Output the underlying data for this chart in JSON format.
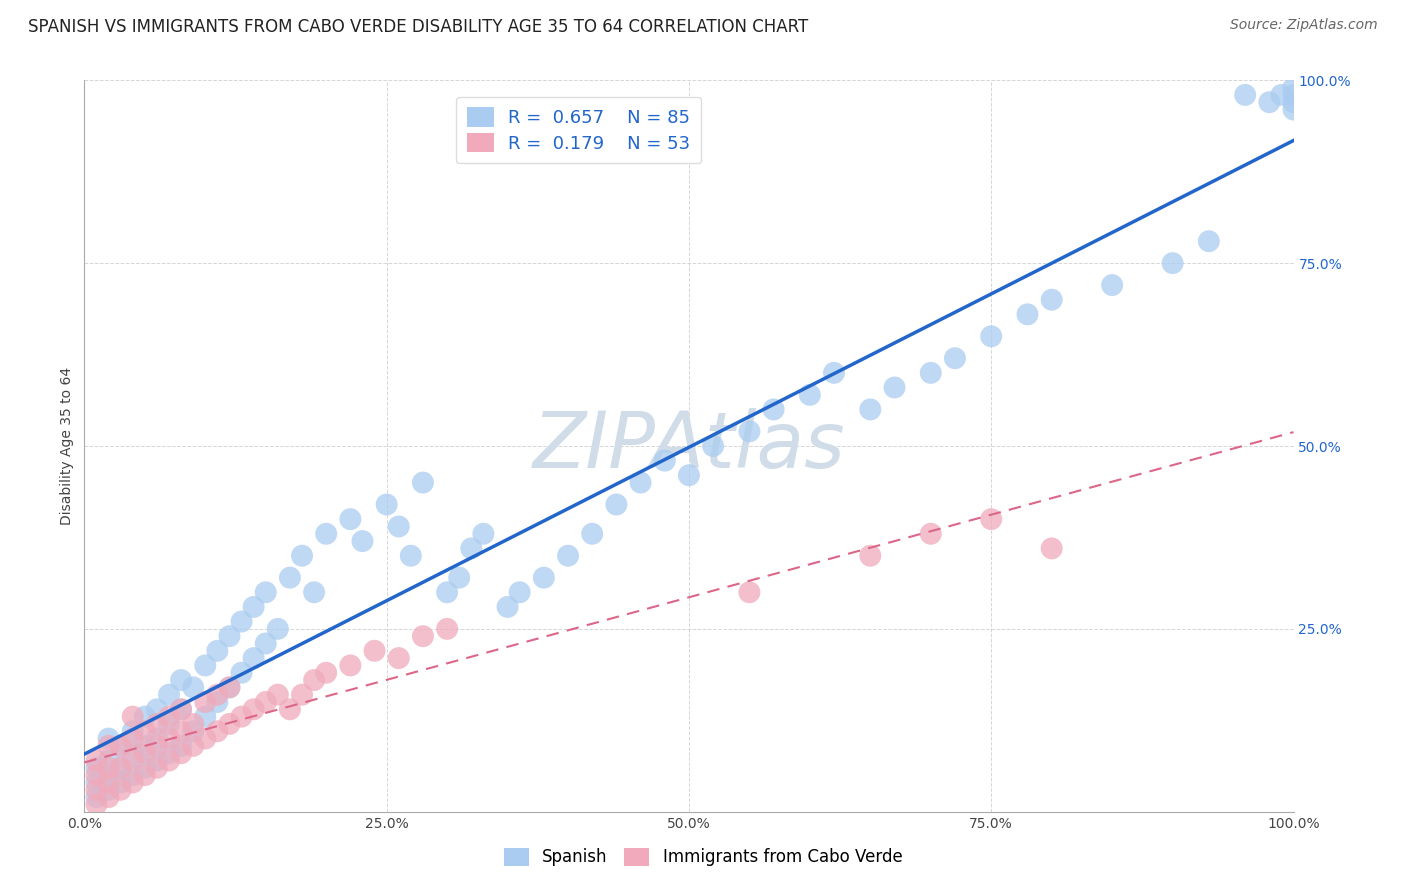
{
  "title": "SPANISH VS IMMIGRANTS FROM CABO VERDE DISABILITY AGE 35 TO 64 CORRELATION CHART",
  "source": "Source: ZipAtlas.com",
  "ylabel": "Disability Age 35 to 64",
  "xlim": [
    0,
    1.0
  ],
  "ylim": [
    0,
    1.0
  ],
  "xticks": [
    0.0,
    0.25,
    0.5,
    0.75,
    1.0
  ],
  "yticks": [
    0.0,
    0.25,
    0.5,
    0.75,
    1.0
  ],
  "xtick_labels": [
    "0.0%",
    "25.0%",
    "50.0%",
    "75.0%",
    "100.0%"
  ],
  "ytick_labels": [
    "",
    "25.0%",
    "50.0%",
    "75.0%",
    "100.0%"
  ],
  "spanish_R": 0.657,
  "spanish_N": 85,
  "caboverde_R": 0.179,
  "caboverde_N": 53,
  "spanish_color": "#aaccf0",
  "caboverde_color": "#f0aabb",
  "spanish_line_color": "#2266cc",
  "caboverde_line_color": "#dd6688",
  "background_color": "#ffffff",
  "grid_color": "#cccccc",
  "watermark_color": "#d0dce8",
  "title_fontsize": 12,
  "axis_label_fontsize": 10,
  "tick_fontsize": 10,
  "source_fontsize": 10,
  "sp_x": [
    0.01,
    0.01,
    0.01,
    0.02,
    0.02,
    0.02,
    0.02,
    0.03,
    0.03,
    0.03,
    0.04,
    0.04,
    0.04,
    0.05,
    0.05,
    0.05,
    0.06,
    0.06,
    0.06,
    0.07,
    0.07,
    0.07,
    0.08,
    0.08,
    0.08,
    0.09,
    0.09,
    0.1,
    0.1,
    0.11,
    0.11,
    0.12,
    0.12,
    0.13,
    0.13,
    0.14,
    0.14,
    0.15,
    0.15,
    0.16,
    0.17,
    0.18,
    0.19,
    0.2,
    0.22,
    0.23,
    0.25,
    0.26,
    0.27,
    0.28,
    0.3,
    0.31,
    0.32,
    0.33,
    0.35,
    0.36,
    0.38,
    0.4,
    0.42,
    0.44,
    0.46,
    0.48,
    0.5,
    0.52,
    0.55,
    0.57,
    0.6,
    0.62,
    0.65,
    0.67,
    0.7,
    0.72,
    0.75,
    0.78,
    0.8,
    0.85,
    0.9,
    0.93,
    0.96,
    0.98,
    0.99,
    1.0,
    1.0,
    1.0,
    1.0
  ],
  "sp_y": [
    0.02,
    0.04,
    0.06,
    0.03,
    0.05,
    0.07,
    0.1,
    0.04,
    0.06,
    0.09,
    0.05,
    0.08,
    0.11,
    0.06,
    0.09,
    0.13,
    0.07,
    0.1,
    0.14,
    0.08,
    0.12,
    0.16,
    0.09,
    0.14,
    0.18,
    0.11,
    0.17,
    0.13,
    0.2,
    0.15,
    0.22,
    0.17,
    0.24,
    0.19,
    0.26,
    0.21,
    0.28,
    0.23,
    0.3,
    0.25,
    0.32,
    0.35,
    0.3,
    0.38,
    0.4,
    0.37,
    0.42,
    0.39,
    0.35,
    0.45,
    0.3,
    0.32,
    0.36,
    0.38,
    0.28,
    0.3,
    0.32,
    0.35,
    0.38,
    0.42,
    0.45,
    0.48,
    0.46,
    0.5,
    0.52,
    0.55,
    0.57,
    0.6,
    0.55,
    0.58,
    0.6,
    0.62,
    0.65,
    0.68,
    0.7,
    0.72,
    0.75,
    0.78,
    0.98,
    0.97,
    0.98,
    0.96,
    0.97,
    0.98,
    0.99
  ],
  "cv_x": [
    0.01,
    0.01,
    0.01,
    0.01,
    0.02,
    0.02,
    0.02,
    0.02,
    0.03,
    0.03,
    0.03,
    0.04,
    0.04,
    0.04,
    0.04,
    0.05,
    0.05,
    0.05,
    0.06,
    0.06,
    0.06,
    0.07,
    0.07,
    0.07,
    0.08,
    0.08,
    0.08,
    0.09,
    0.09,
    0.1,
    0.1,
    0.11,
    0.11,
    0.12,
    0.12,
    0.13,
    0.14,
    0.15,
    0.16,
    0.17,
    0.18,
    0.19,
    0.2,
    0.22,
    0.24,
    0.26,
    0.28,
    0.3,
    0.55,
    0.65,
    0.7,
    0.75,
    0.8
  ],
  "cv_y": [
    0.01,
    0.03,
    0.05,
    0.07,
    0.02,
    0.04,
    0.06,
    0.09,
    0.03,
    0.06,
    0.09,
    0.04,
    0.07,
    0.1,
    0.13,
    0.05,
    0.08,
    0.11,
    0.06,
    0.09,
    0.12,
    0.07,
    0.1,
    0.13,
    0.08,
    0.11,
    0.14,
    0.09,
    0.12,
    0.1,
    0.15,
    0.11,
    0.16,
    0.12,
    0.17,
    0.13,
    0.14,
    0.15,
    0.16,
    0.14,
    0.16,
    0.18,
    0.19,
    0.2,
    0.22,
    0.21,
    0.24,
    0.25,
    0.3,
    0.35,
    0.38,
    0.4,
    0.36
  ]
}
